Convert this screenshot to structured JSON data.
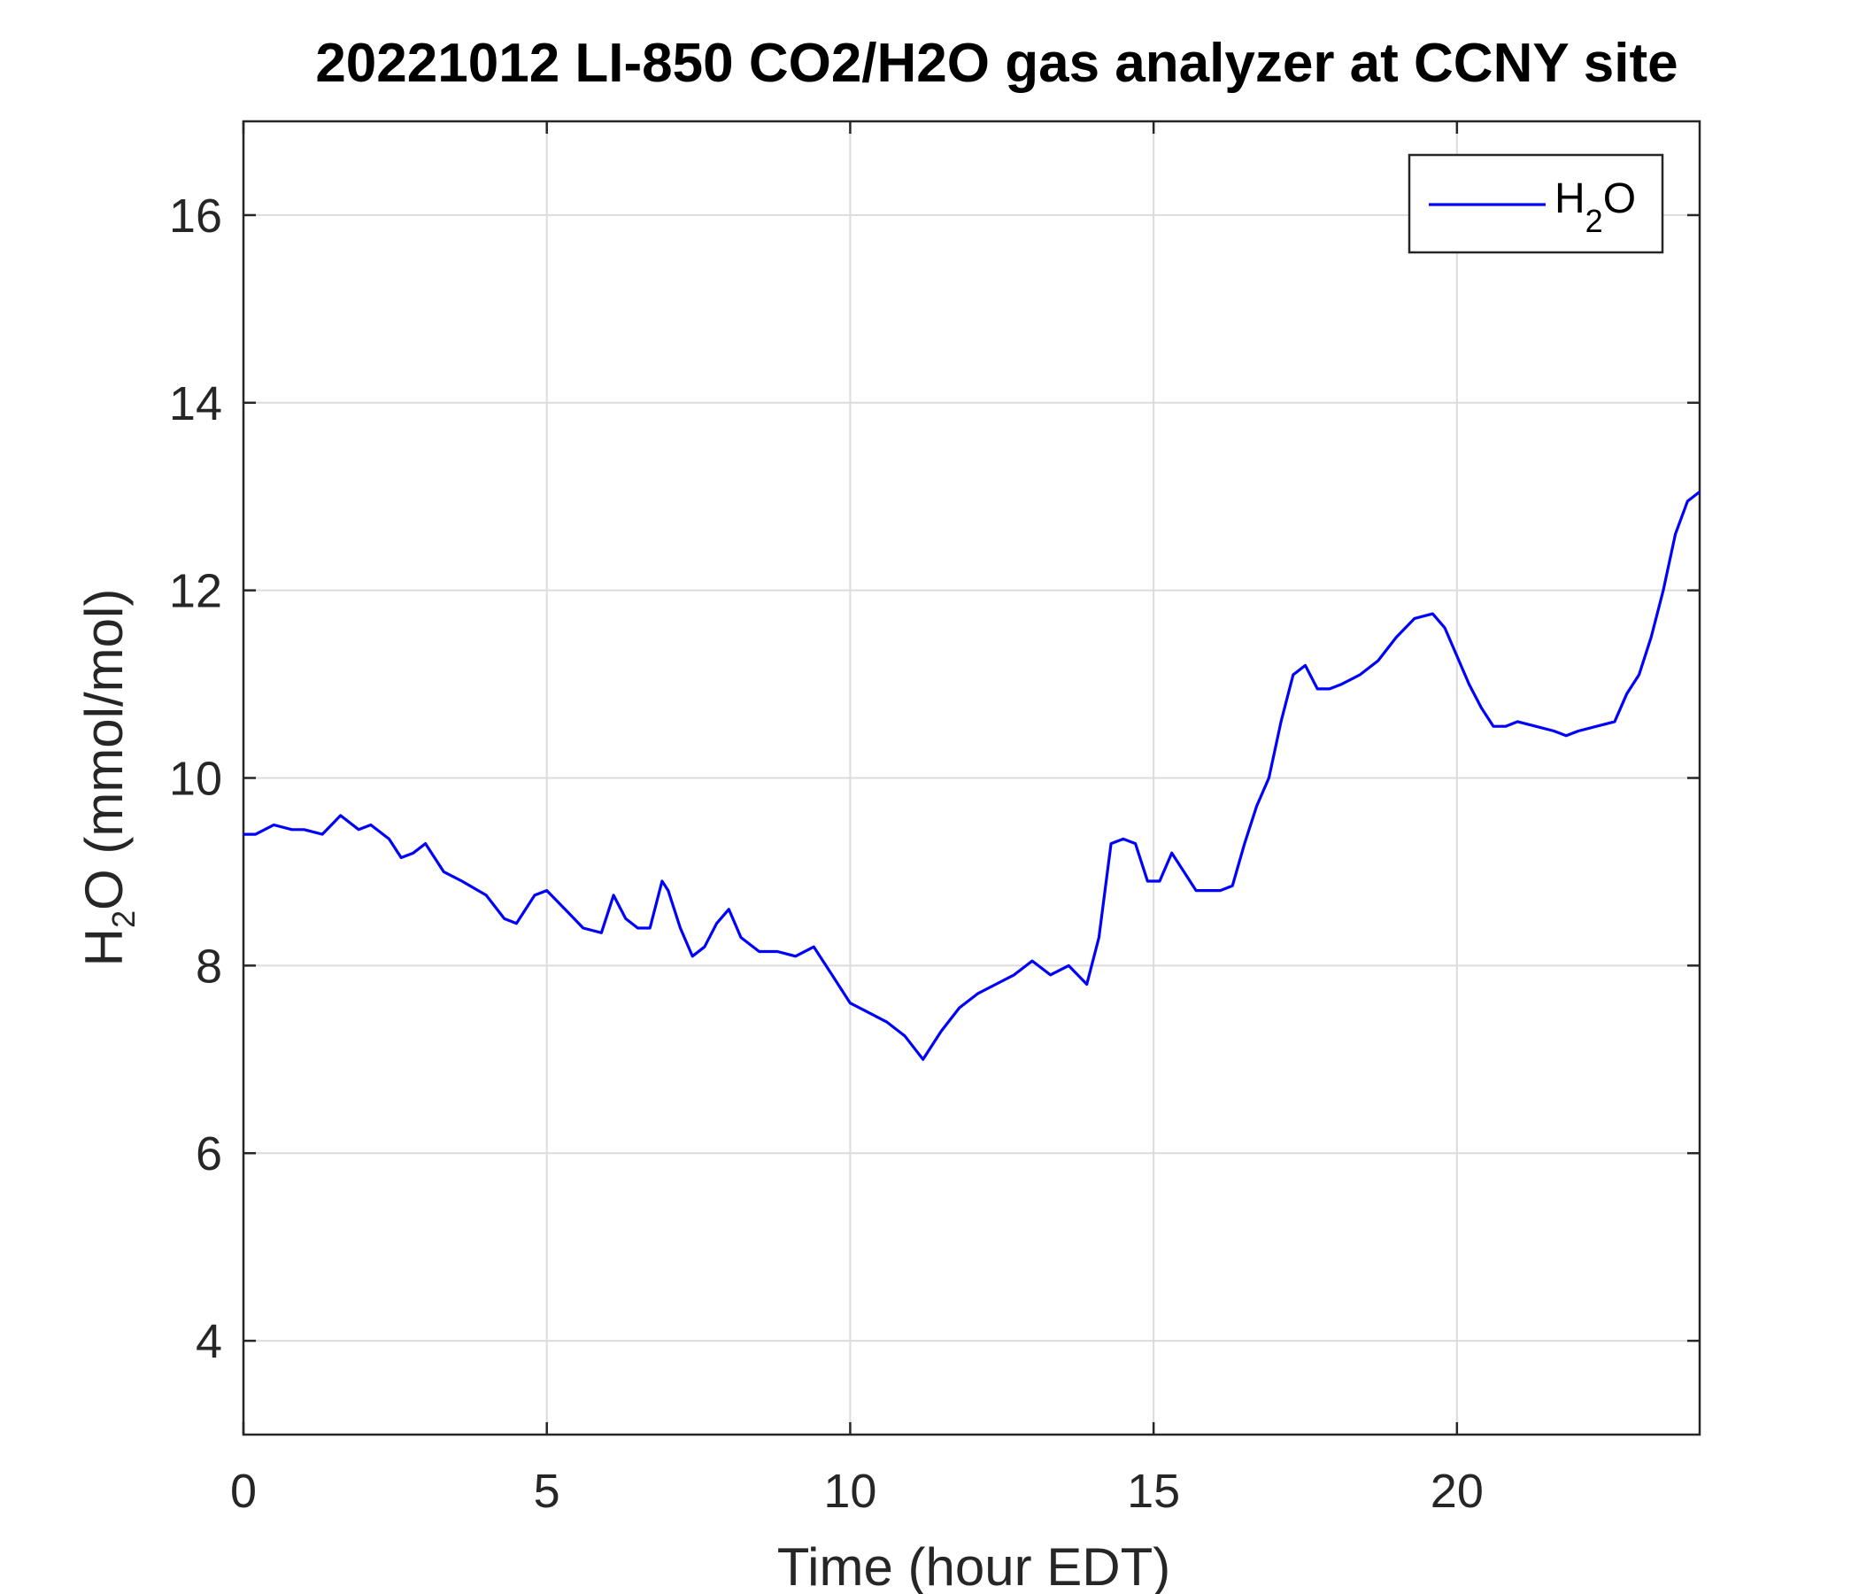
{
  "chart_data": {
    "type": "line",
    "title": "20221012 LI-850 CO2/H2O gas analyzer at CCNY site",
    "xlabel": "Time (hour EDT)",
    "ylabel": {
      "main": "H",
      "sub": "2",
      "rest": "O (mmol/mol)"
    },
    "xlim": [
      0,
      24
    ],
    "ylim": [
      3,
      17
    ],
    "xticks": [
      0,
      5,
      10,
      15,
      20
    ],
    "yticks": [
      4,
      6,
      8,
      10,
      12,
      14,
      16
    ],
    "grid": true,
    "legend_position": "top-right",
    "series": [
      {
        "name": {
          "main": "H",
          "sub": "2",
          "rest": "O"
        },
        "color": "#0000ff",
        "x": [
          0,
          0.2,
          0.5,
          0.8,
          1.0,
          1.3,
          1.6,
          1.9,
          2.1,
          2.4,
          2.6,
          2.8,
          3.0,
          3.3,
          3.6,
          4.0,
          4.3,
          4.5,
          4.8,
          5.0,
          5.3,
          5.6,
          5.9,
          6.1,
          6.3,
          6.5,
          6.7,
          6.9,
          7.0,
          7.2,
          7.4,
          7.6,
          7.8,
          8.0,
          8.2,
          8.5,
          8.8,
          9.1,
          9.4,
          9.7,
          10.0,
          10.3,
          10.6,
          10.9,
          11.2,
          11.5,
          11.8,
          12.1,
          12.4,
          12.7,
          13.0,
          13.3,
          13.6,
          13.9,
          14.1,
          14.3,
          14.5,
          14.7,
          14.9,
          15.1,
          15.3,
          15.5,
          15.7,
          15.9,
          16.1,
          16.3,
          16.5,
          16.7,
          16.9,
          17.1,
          17.3,
          17.5,
          17.7,
          17.9,
          18.1,
          18.4,
          18.7,
          19.0,
          19.3,
          19.6,
          19.8,
          20.0,
          20.2,
          20.4,
          20.6,
          20.8,
          21.0,
          21.3,
          21.6,
          21.8,
          22.0,
          22.3,
          22.6,
          22.8,
          23.0,
          23.2,
          23.4,
          23.6,
          23.8,
          24.0
        ],
        "values": [
          9.4,
          9.4,
          9.5,
          9.45,
          9.45,
          9.4,
          9.6,
          9.45,
          9.5,
          9.35,
          9.15,
          9.2,
          9.3,
          9.0,
          8.9,
          8.75,
          8.5,
          8.45,
          8.75,
          8.8,
          8.6,
          8.4,
          8.35,
          8.75,
          8.5,
          8.4,
          8.4,
          8.9,
          8.8,
          8.4,
          8.1,
          8.2,
          8.45,
          8.6,
          8.3,
          8.15,
          8.15,
          8.1,
          8.2,
          7.9,
          7.6,
          7.5,
          7.4,
          7.25,
          7.0,
          7.3,
          7.55,
          7.7,
          7.8,
          7.9,
          8.05,
          7.9,
          8.0,
          7.8,
          8.3,
          9.3,
          9.35,
          9.3,
          8.9,
          8.9,
          9.2,
          9.0,
          8.8,
          8.8,
          8.8,
          8.85,
          9.3,
          9.7,
          10.0,
          10.6,
          11.1,
          11.2,
          10.95,
          10.95,
          11.0,
          11.1,
          11.25,
          11.5,
          11.7,
          11.75,
          11.6,
          11.3,
          11.0,
          10.75,
          10.55,
          10.55,
          10.6,
          10.55,
          10.5,
          10.45,
          10.5,
          10.55,
          10.6,
          10.9,
          11.1,
          11.5,
          12.0,
          12.6,
          12.95,
          13.05
        ]
      }
    ]
  }
}
